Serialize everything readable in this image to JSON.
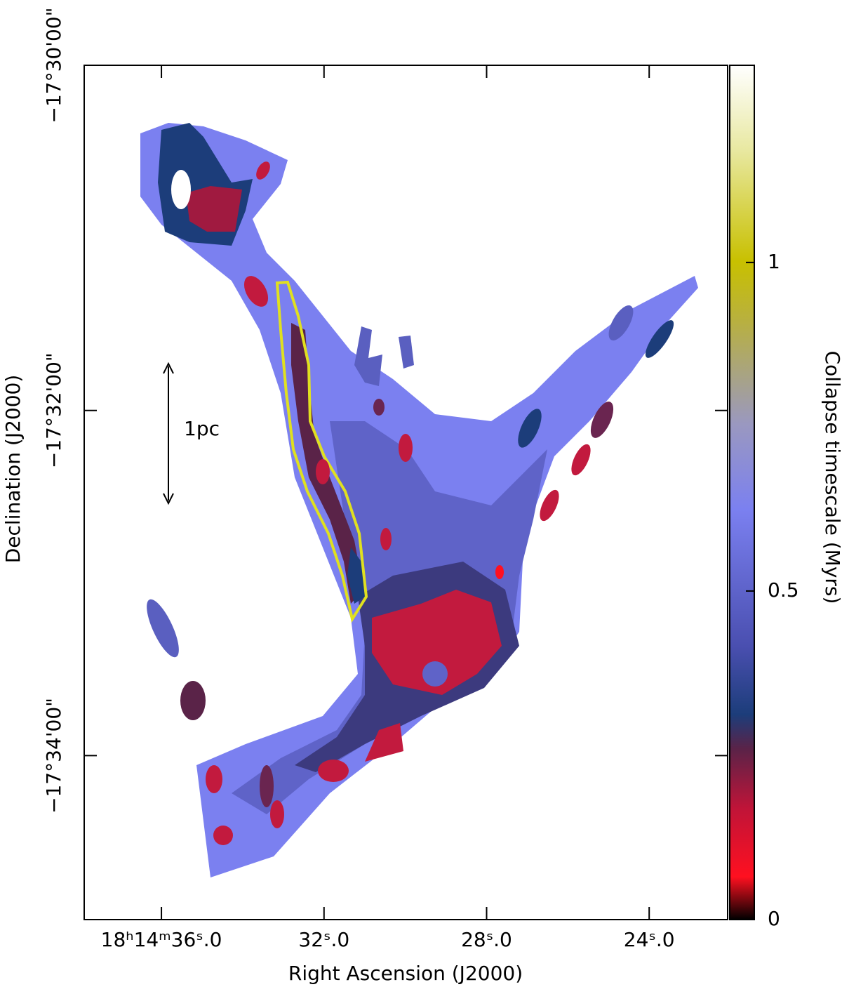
{
  "chart_data": {
    "type": "image",
    "xlabel": "Right Ascension (J2000)",
    "ylabel": "Declination (J2000)",
    "xlim": [
      37.9,
      22.07
    ],
    "xticks": [
      {
        "value": 36,
        "label": "18ʰ14ᵐ36ˢ.0"
      },
      {
        "value": 32,
        "label": "32ˢ.0"
      },
      {
        "value": 28,
        "label": "28ˢ.0"
      },
      {
        "value": 24,
        "label": "24ˢ.0"
      }
    ],
    "ylim": [
      -34.95,
      -30
    ],
    "yticks": [
      {
        "value": -30,
        "label": "−17°30'00\""
      },
      {
        "value": -32,
        "label": "−17°32'00\""
      },
      {
        "value": -34,
        "label": "−17°34'00\""
      }
    ],
    "colorbar": {
      "label": "Collapse timescale (Myrs)",
      "lim": [
        0,
        1.3
      ],
      "ticks": [
        0,
        0.5,
        1
      ]
    },
    "annotation": "1pc"
  }
}
